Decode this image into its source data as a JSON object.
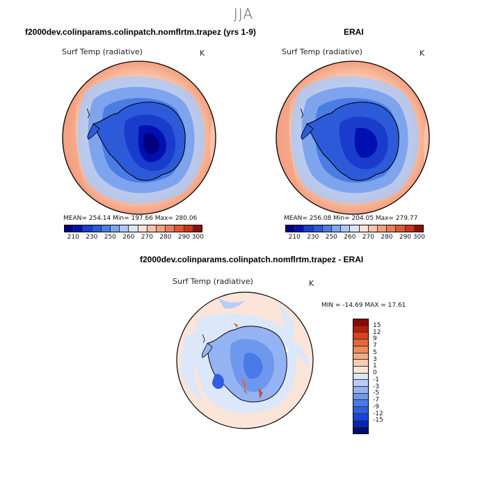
{
  "figure": {
    "season": "JJA",
    "diff_title": "f2000dev.colinparams.colinpatch.nomflrtm.trapez - ERAI"
  },
  "panels": [
    {
      "case_title": "f2000dev.colinparams.colinpatch.nomflrtm.trapez (yrs 1-9)",
      "variable": "Surf Temp (radiative)",
      "units": "K",
      "stats": "MEAN= 254.14   Min= 197.66   Max= 280.06"
    },
    {
      "case_title": "ERAI",
      "variable": "Surf Temp (radiative)",
      "units": "K",
      "stats": "MEAN= 256.08   Min= 204.05   Max= 279.77"
    }
  ],
  "diff_panel": {
    "variable": "Surf Temp (radiative)",
    "units": "K",
    "stats": "MIN = -14.69  MAX =  17.61"
  },
  "colorbar": {
    "colors": [
      "#00007f",
      "#0010b0",
      "#1a3ccc",
      "#2c5ad8",
      "#4a7ce4",
      "#7ea4ee",
      "#aec8f5",
      "#d9e6fa",
      "#fde2d5",
      "#f9c2a8",
      "#f3a080",
      "#ec7c58",
      "#e25632",
      "#cc3414",
      "#8e0f07"
    ],
    "tick_labels": [
      "210",
      "230",
      "250",
      "260",
      "270",
      "280",
      "290",
      "300"
    ]
  },
  "diff_colorbar": {
    "colors": [
      "#000c74",
      "#0026b8",
      "#1a44d8",
      "#2e5ee2",
      "#4a7ae8",
      "#6e98ee",
      "#93b3f2",
      "#b9ccf6",
      "#dde7fa",
      "#fbe5d8",
      "#f8cdb4",
      "#f3ab86",
      "#ee8a5e",
      "#e56638",
      "#d9421c",
      "#b51e08",
      "#8a0a02"
    ],
    "tick_labels": [
      "15",
      "12",
      "9",
      "7",
      "5",
      "3",
      "1",
      "0",
      "-1",
      "-3",
      "-5",
      "-7",
      "-9",
      "-12",
      "-15"
    ]
  }
}
